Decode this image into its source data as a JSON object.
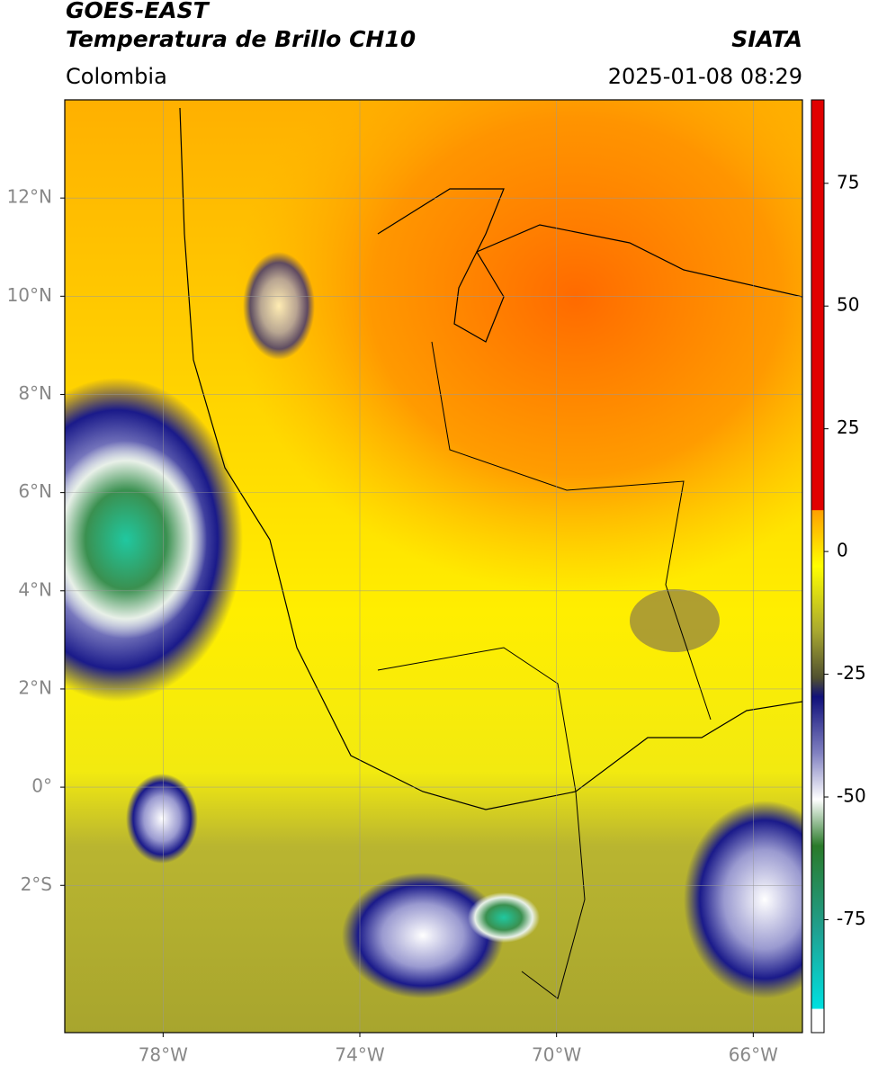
{
  "header": {
    "title": "GOES-EAST",
    "subtitle": "Temperatura de Brillo CH10",
    "source": "SIATA",
    "region": "Colombia",
    "timestamp": "2025-01-08 08:29"
  },
  "map": {
    "xlim": [
      -80,
      -65
    ],
    "ylim": [
      -5,
      14
    ],
    "xticks": [
      {
        "value": -78,
        "label": "78°W"
      },
      {
        "value": -74,
        "label": "74°W"
      },
      {
        "value": -70,
        "label": "70°W"
      },
      {
        "value": -66,
        "label": "66°W"
      }
    ],
    "yticks": [
      {
        "value": 12,
        "label": "12°N"
      },
      {
        "value": 10,
        "label": "10°N"
      },
      {
        "value": 8,
        "label": "8°N"
      },
      {
        "value": 6,
        "label": "6°N"
      },
      {
        "value": 4,
        "label": "4°N"
      },
      {
        "value": 2,
        "label": "2°N"
      },
      {
        "value": 0,
        "label": "0°"
      },
      {
        "value": -2,
        "label": "2°S"
      }
    ],
    "grid": true
  },
  "colorbar": {
    "lim": [
      -98,
      92
    ],
    "ticks": [
      75,
      50,
      25,
      0,
      -25,
      -50,
      -75
    ]
  }
}
